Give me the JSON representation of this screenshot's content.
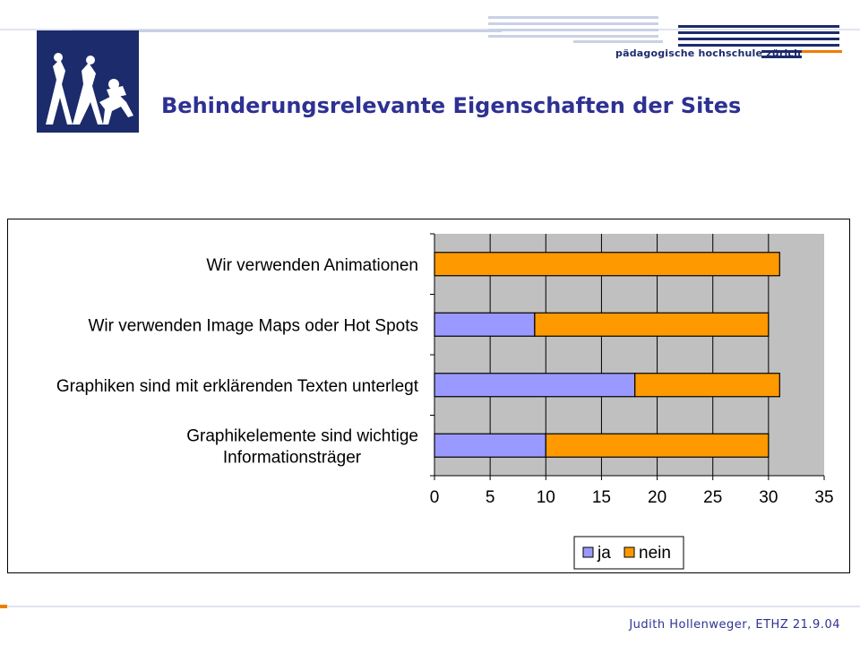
{
  "header": {
    "institution": "pädagogische hochschule zürich",
    "title": "Behinderungsrelevante Eigenschaften der Sites"
  },
  "footer": {
    "credit": "Judith Hollenweger, ETHZ  21.9.04"
  },
  "colors": {
    "title": "#2e3192",
    "brand": "#1c2b6b",
    "ja": "#9999ff",
    "nein": "#ff9900",
    "plot_bg": "#c0c0c0",
    "accent": "#f07c00"
  },
  "chart_data": {
    "type": "bar",
    "orientation": "horizontal",
    "stacked": true,
    "categories": [
      [
        "Wir verwenden Animationen"
      ],
      [
        "Wir verwenden Image Maps oder Hot Spots"
      ],
      [
        "Graphiken sind mit erklärenden Texten unterlegt"
      ],
      [
        "Graphikelemente sind wichtige",
        "Informationsträger"
      ]
    ],
    "series": [
      {
        "name": "ja",
        "values": [
          0,
          9,
          18,
          10
        ]
      },
      {
        "name": "nein",
        "values": [
          31,
          21,
          13,
          20
        ]
      }
    ],
    "xlim": [
      0,
      35
    ],
    "xticks": [
      "0",
      "5",
      "10",
      "15",
      "20",
      "25",
      "30",
      "35"
    ],
    "grid": true,
    "legend": {
      "position": "bottom",
      "items": [
        "ja",
        "nein"
      ]
    }
  }
}
